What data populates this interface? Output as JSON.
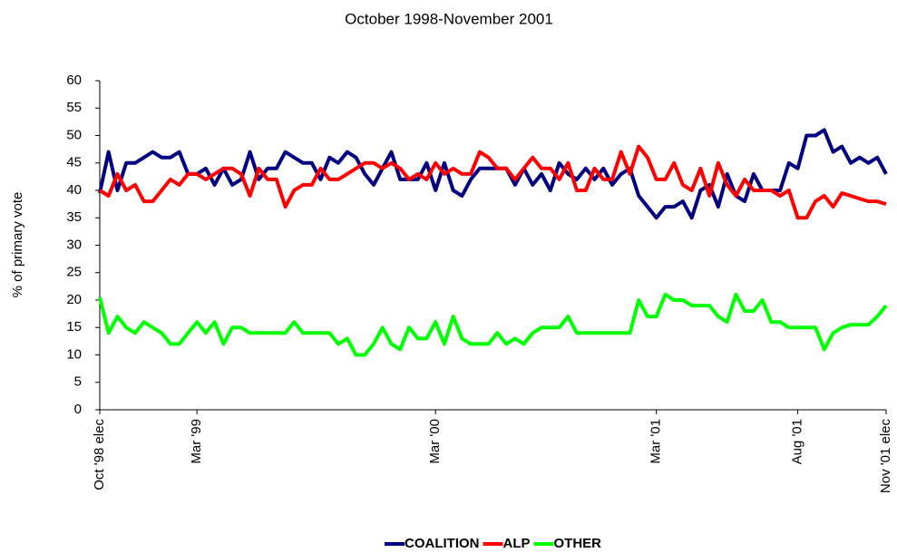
{
  "chart_data": {
    "type": "line",
    "title": "October 1998-November 2001",
    "y_label": "% of primary vote",
    "categories": [
      "Oct '98 elec",
      null,
      null,
      null,
      null,
      null,
      null,
      null,
      null,
      null,
      null,
      "Mar '99",
      null,
      null,
      null,
      null,
      null,
      null,
      null,
      null,
      null,
      null,
      null,
      null,
      null,
      null,
      null,
      null,
      null,
      null,
      null,
      null,
      null,
      null,
      null,
      null,
      null,
      null,
      "Mar '00",
      null,
      null,
      null,
      null,
      null,
      null,
      null,
      null,
      null,
      null,
      null,
      null,
      null,
      null,
      null,
      null,
      null,
      null,
      null,
      null,
      null,
      null,
      null,
      null,
      "Mar '01",
      null,
      null,
      null,
      null,
      null,
      null,
      null,
      null,
      null,
      null,
      null,
      null,
      null,
      null,
      null,
      "Aug '01",
      null,
      null,
      null,
      null,
      null,
      null,
      null,
      null,
      null,
      "Nov '01 elec"
    ],
    "series": [
      {
        "name": "COALITION",
        "color": "#000080",
        "values": [
          39.5,
          47,
          40,
          45,
          45,
          46,
          47,
          46,
          46,
          47,
          43,
          43,
          44,
          41,
          44,
          41,
          42,
          47,
          42,
          44,
          44,
          47,
          46,
          45,
          45,
          42,
          46,
          45,
          47,
          46,
          43,
          41,
          44,
          47,
          42,
          42,
          42,
          45,
          40,
          45,
          40,
          39,
          42,
          44,
          44,
          44,
          44,
          41,
          44,
          41,
          43,
          40,
          45,
          43,
          42,
          44,
          42,
          44,
          41,
          43,
          44,
          39,
          37,
          35,
          37,
          37,
          38,
          35,
          40,
          41,
          37,
          43,
          39,
          38,
          43,
          40,
          40,
          40,
          45,
          44,
          50,
          50,
          51,
          47,
          48,
          45,
          46,
          45,
          46,
          43
        ]
      },
      {
        "name": "ALP",
        "color": "#ff0000",
        "values": [
          40,
          39,
          43,
          40,
          41,
          38,
          38,
          40,
          42,
          41,
          43,
          43,
          42,
          43,
          44,
          44,
          43,
          39,
          44,
          42,
          42,
          37,
          40,
          41,
          41,
          44,
          42,
          42,
          43,
          44,
          45,
          45,
          44,
          45,
          44,
          42,
          43,
          42,
          45,
          43,
          44,
          43,
          43,
          47,
          46,
          44,
          44,
          42,
          44,
          46,
          44,
          44,
          42,
          45,
          40,
          40,
          44,
          42,
          42,
          47,
          43,
          48,
          46,
          42,
          42,
          45,
          41,
          40,
          44,
          39,
          45,
          41,
          39,
          42,
          40,
          40,
          40,
          39,
          40,
          35,
          35,
          38,
          39,
          37,
          39.5,
          39,
          38.5,
          38,
          38,
          37.5
        ]
      },
      {
        "name": "OTHER",
        "color": "#00ff00",
        "values": [
          20.5,
          14,
          17,
          15,
          14,
          16,
          15,
          14,
          12,
          12,
          14,
          16,
          14,
          16,
          12,
          15,
          15,
          14,
          14,
          14,
          14,
          14,
          16,
          14,
          14,
          14,
          14,
          12,
          13,
          10,
          10,
          12,
          15,
          12,
          11,
          15,
          13,
          13,
          16,
          12,
          17,
          13,
          12,
          12,
          12,
          14,
          12,
          13,
          12,
          14,
          15,
          15,
          15,
          17,
          14,
          14,
          14,
          14,
          14,
          14,
          14,
          20,
          17,
          17,
          21,
          20,
          20,
          19,
          19,
          19,
          17,
          16,
          21,
          18,
          18,
          20,
          16,
          16,
          15,
          15,
          15,
          15,
          11,
          14,
          15,
          15.5,
          15.5,
          15.5,
          17,
          19
        ]
      }
    ],
    "ylim": [
      0,
      60
    ],
    "yticks": [
      0,
      5,
      10,
      15,
      20,
      25,
      30,
      35,
      40,
      45,
      50,
      55,
      60
    ],
    "grid": false,
    "legend": "bottom"
  }
}
